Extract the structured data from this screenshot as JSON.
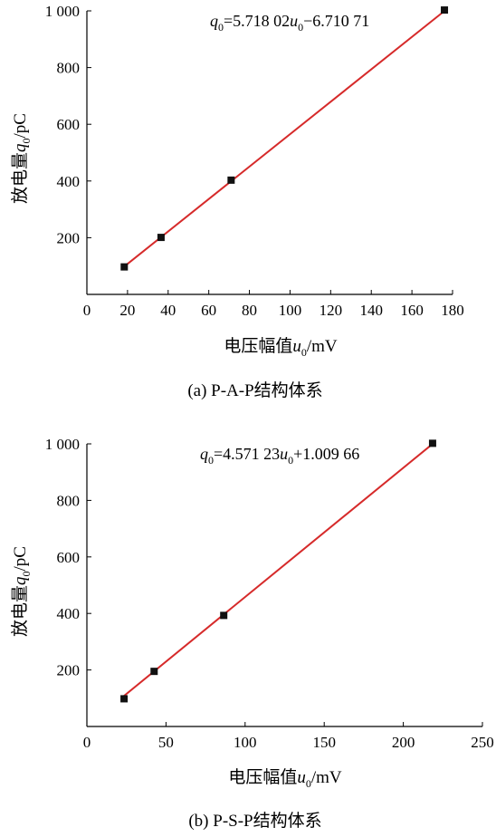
{
  "chart_data": [
    {
      "type": "scatter",
      "caption": "(a) P-A-P结构体系",
      "xlabel": "电压幅值u0/mV",
      "ylabel": "放电量q0/pC",
      "xlim": [
        0,
        180
      ],
      "ylim": [
        0,
        1000
      ],
      "x_ticks": [
        0,
        20,
        40,
        60,
        80,
        100,
        120,
        140,
        160,
        180
      ],
      "y_ticks": [
        200,
        400,
        600,
        800,
        1000
      ],
      "x_tick_labels": [
        "0",
        "20",
        "40",
        "60",
        "80",
        "100",
        "120",
        "140",
        "160",
        "180"
      ],
      "y_tick_labels": [
        "200",
        "400",
        "600",
        "800",
        "1 000"
      ],
      "points": [
        {
          "x": 18.4,
          "y": 97
        },
        {
          "x": 36.5,
          "y": 201
        },
        {
          "x": 71.0,
          "y": 403
        },
        {
          "x": 176.0,
          "y": 1003
        }
      ],
      "fit": {
        "slope": 5.71802,
        "intercept": -6.71071,
        "x_range": [
          18.4,
          176.0
        ],
        "equation_text": "q0=5.718 02u0−6.710 71"
      },
      "colors": {
        "line": "#d62a2a",
        "marker": "#111111"
      },
      "grid": false
    },
    {
      "type": "scatter",
      "caption": "(b) P-S-P结构体系",
      "xlabel": "电压幅值u0/mV",
      "ylabel": "放电量q0/pC",
      "xlim": [
        0,
        250
      ],
      "ylim": [
        0,
        1000
      ],
      "x_ticks": [
        0,
        50,
        100,
        150,
        200,
        250
      ],
      "y_ticks": [
        200,
        400,
        600,
        800,
        1000
      ],
      "x_tick_labels": [
        "0",
        "50",
        "100",
        "150",
        "200",
        "250"
      ],
      "y_tick_labels": [
        "200",
        "400",
        "600",
        "800",
        "1 000"
      ],
      "points": [
        {
          "x": 23.5,
          "y": 98
        },
        {
          "x": 42.5,
          "y": 195
        },
        {
          "x": 86.5,
          "y": 393
        },
        {
          "x": 218.5,
          "y": 1002
        }
      ],
      "fit": {
        "slope": 4.57123,
        "intercept": 1.00966,
        "x_range": [
          23.5,
          218.5
        ],
        "equation_text": "q0=4.571 23u0+1.009 66"
      },
      "colors": {
        "line": "#d62a2a",
        "marker": "#111111"
      },
      "grid": false
    }
  ],
  "labels": {
    "ylabel_main": "放电量",
    "ylabel_var": "q",
    "ylabel_sub": "0",
    "ylabel_unit": "/pC",
    "xlabel_main": "电压幅值",
    "xlabel_var": "u",
    "xlabel_sub": "0",
    "xlabel_unit": "/mV"
  },
  "equations": [
    {
      "lhs": "q",
      "lhs_sub": "0",
      "part1": "=5.718 02",
      "var": "u",
      "var_sub": "0",
      "part2": "−6.710 71"
    },
    {
      "lhs": "q",
      "lhs_sub": "0",
      "part1": "=4.571 23",
      "var": "u",
      "var_sub": "0",
      "part2": "+1.009 66"
    }
  ]
}
